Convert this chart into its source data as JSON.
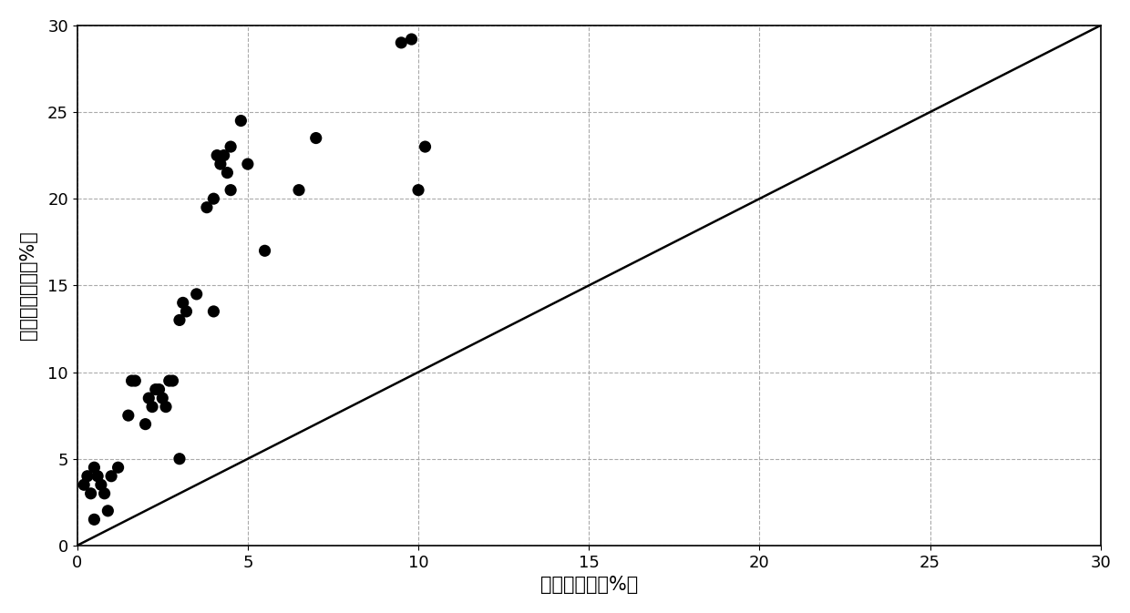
{
  "scatter_x": [
    0.2,
    0.3,
    0.4,
    0.5,
    0.5,
    0.6,
    0.7,
    0.8,
    0.9,
    1.0,
    1.2,
    1.5,
    1.6,
    1.7,
    2.0,
    2.1,
    2.2,
    2.3,
    2.4,
    2.5,
    2.6,
    2.7,
    2.8,
    3.0,
    3.0,
    3.1,
    3.2,
    3.5,
    3.8,
    4.0,
    4.0,
    4.1,
    4.2,
    4.3,
    4.4,
    4.5,
    4.5,
    4.8,
    5.0,
    5.5,
    6.5,
    7.0,
    9.5,
    9.8,
    10.0,
    10.2
  ],
  "scatter_y": [
    3.5,
    4.0,
    3.0,
    1.5,
    4.5,
    4.0,
    3.5,
    3.0,
    2.0,
    4.0,
    4.5,
    7.5,
    9.5,
    9.5,
    7.0,
    8.5,
    8.0,
    9.0,
    9.0,
    8.5,
    8.0,
    9.5,
    9.5,
    5.0,
    13.0,
    14.0,
    13.5,
    14.5,
    19.5,
    13.5,
    20.0,
    22.5,
    22.0,
    22.5,
    21.5,
    20.5,
    23.0,
    24.5,
    22.0,
    17.0,
    20.5,
    23.5,
    29.0,
    29.2,
    20.5,
    23.0
  ],
  "line_x": [
    0,
    30
  ],
  "line_y": [
    0,
    30
  ],
  "xlim": [
    0,
    30
  ],
  "ylim": [
    0,
    30
  ],
  "xticks": [
    0,
    5,
    10,
    15,
    20,
    25,
    30
  ],
  "yticks": [
    0,
    5,
    10,
    15,
    20,
    25,
    30
  ],
  "xlabel": "分析孔隙度（%）",
  "ylabel": "校正前孔隙度（%）",
  "scatter_color": "#000000",
  "line_color": "#000000",
  "grid_color": "#aaaaaa",
  "background_color": "#ffffff",
  "marker_size": 90,
  "line_width": 1.8,
  "xlabel_fontsize": 15,
  "ylabel_fontsize": 15,
  "tick_fontsize": 13
}
